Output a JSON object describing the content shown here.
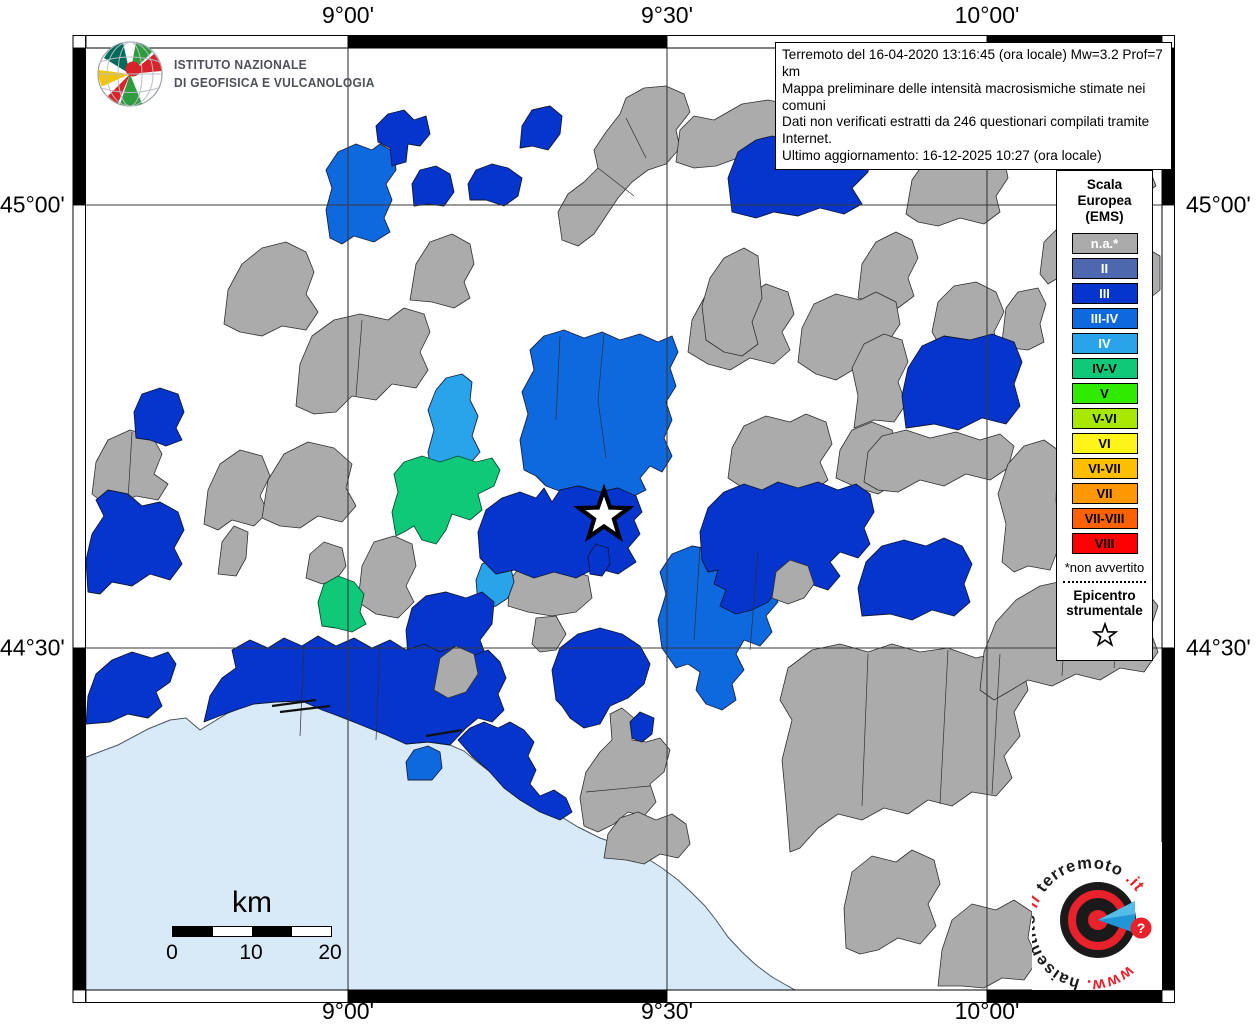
{
  "axis": {
    "top": [
      "9°00'",
      "9°30'",
      "10°00'"
    ],
    "bottom": [
      "9°00'",
      "9°30'",
      "10°00'"
    ],
    "left": [
      "45°00'",
      "44°30'"
    ],
    "right": [
      "45°00'",
      "44°30'"
    ]
  },
  "title_box": {
    "lines": [
      "Terremoto del 16-04-2020 13:16:45 (ora locale) Mw=3.2 Prof=7 km",
      "Mappa preliminare delle intensità macrosismiche stimate nei comuni",
      "Dati non verificati estratti da 246 questionari compilati tramite Internet.",
      "Ultimo aggiornamento: 16-12-2025 10:27 (ora locale)"
    ]
  },
  "ingv": {
    "line1": "ISTITUTO NAZIONALE",
    "line2": "DI GEOFISICA E VULCANOLOGIA"
  },
  "legend": {
    "title_lines": [
      "Scala",
      "Europea",
      "(EMS)"
    ],
    "items": [
      {
        "label": "n.a.*",
        "color": "#ABABAB",
        "text": "#FFFFFF"
      },
      {
        "label": "II",
        "color": "#4E68B0",
        "text": "#FFFFFF"
      },
      {
        "label": "III",
        "color": "#0535CC",
        "text": "#FFFFFF"
      },
      {
        "label": "III-IV",
        "color": "#0E68DE",
        "text": "#FFFFFF"
      },
      {
        "label": "IV",
        "color": "#29A4EA",
        "text": "#FFFFFF"
      },
      {
        "label": "IV-V",
        "color": "#0FC878",
        "text": "#000000"
      },
      {
        "label": "V",
        "color": "#2FEB00",
        "text": "#000000"
      },
      {
        "label": "V-VI",
        "color": "#A8E800",
        "text": "#000000"
      },
      {
        "label": "VI",
        "color": "#FFF318",
        "text": "#000000"
      },
      {
        "label": "VI-VII",
        "color": "#FFBF00",
        "text": "#000000"
      },
      {
        "label": "VII",
        "color": "#FF9800",
        "text": "#000000"
      },
      {
        "label": "VII-VIII",
        "color": "#FF6100",
        "text": "#000000"
      },
      {
        "label": "VIII",
        "color": "#FE0000",
        "text": "#000000"
      }
    ],
    "footnote": "*non avvertito",
    "epicenter_lines": [
      "Epicentro",
      "strumentale"
    ]
  },
  "scale_bar": {
    "unit": "km",
    "ticks": [
      "0",
      "10",
      "20"
    ]
  },
  "hsit_logo": {
    "www": "www.",
    "part1": "haisentito",
    "il": "il",
    "part2": "terremoto",
    "it": ".it",
    "question": "?"
  },
  "colors": {
    "na": "#ABABAB",
    "III": "#0535CC",
    "III_IV": "#0E68DE",
    "IV": "#29A4EA",
    "IV_V": "#0FC878",
    "sea": "#D8EAF8",
    "land": "#FFFFFF"
  }
}
